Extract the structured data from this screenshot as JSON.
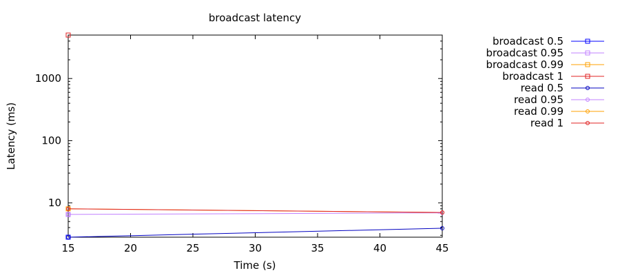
{
  "chart_data": {
    "type": "line",
    "title": "broadcast latency",
    "xlabel": "Time (s)",
    "ylabel": "Latency (ms)",
    "xlim": [
      15,
      45
    ],
    "ylim": [
      2.8,
      5000
    ],
    "yscale": "log",
    "x_ticks": [
      15,
      20,
      25,
      30,
      35,
      40,
      45
    ],
    "y_ticks": [
      10,
      100,
      1000
    ],
    "legend_position": "right",
    "grid": false,
    "series": [
      {
        "name": "broadcast 0.5",
        "color": "#0000ff",
        "marker": "square",
        "x": [
          15
        ],
        "y": [
          2.8
        ]
      },
      {
        "name": "broadcast 0.95",
        "color": "#c080ff",
        "marker": "square",
        "x": [
          15
        ],
        "y": [
          6.5
        ]
      },
      {
        "name": "broadcast 0.99",
        "color": "#ffa000",
        "marker": "square",
        "x": [
          15
        ],
        "y": [
          8
        ]
      },
      {
        "name": "broadcast 1",
        "color": "#e02020",
        "marker": "square",
        "x": [
          15
        ],
        "y": [
          5000
        ]
      },
      {
        "name": "read 0.5",
        "color": "#0000c0",
        "marker": "circle",
        "x": [
          15,
          45
        ],
        "y": [
          2.8,
          3.9
        ]
      },
      {
        "name": "read 0.95",
        "color": "#c080ff",
        "marker": "circle",
        "x": [
          15,
          45
        ],
        "y": [
          6.5,
          6.9
        ]
      },
      {
        "name": "read 0.99",
        "color": "#ffa000",
        "marker": "circle",
        "x": [
          15,
          45
        ],
        "y": [
          8,
          7
        ]
      },
      {
        "name": "read 1",
        "color": "#e02020",
        "marker": "circle",
        "x": [
          15,
          45
        ],
        "y": [
          8,
          7
        ]
      }
    ]
  }
}
